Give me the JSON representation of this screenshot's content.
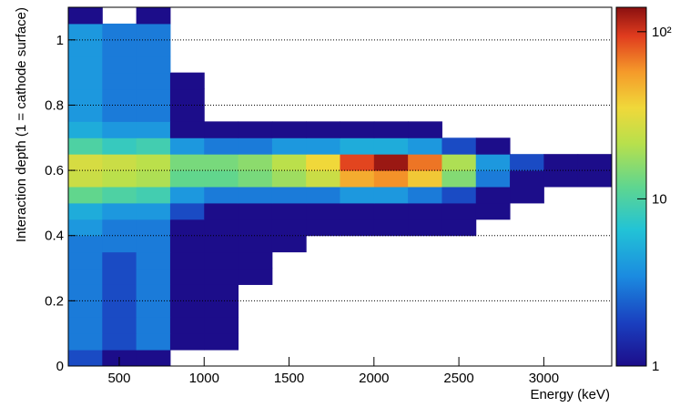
{
  "chart_data": {
    "type": "heatmap",
    "x_label": "Energy (keV)",
    "y_label": "Interaction depth (1 = cathode surface)",
    "x_bins": [
      200,
      400,
      600,
      800,
      1000,
      1200,
      1400,
      1600,
      1800,
      2000,
      2200,
      2400,
      2600,
      2800,
      3000,
      3200,
      3400
    ],
    "y_bins": [
      0,
      0.05,
      0.1,
      0.15,
      0.2,
      0.25,
      0.3,
      0.35,
      0.4,
      0.45,
      0.5,
      0.55,
      0.6,
      0.65,
      0.7,
      0.75,
      0.8,
      0.85,
      0.9,
      0.95,
      1,
      1.05,
      1.1
    ],
    "z": [
      [
        2,
        1,
        1,
        0,
        0,
        0,
        0,
        0,
        0,
        0,
        0,
        0,
        0,
        0,
        0,
        0
      ],
      [
        3,
        2,
        3,
        1,
        1,
        0,
        0,
        0,
        0,
        0,
        0,
        0,
        0,
        0,
        0,
        0
      ],
      [
        3,
        2,
        3,
        1,
        1,
        0,
        0,
        0,
        0,
        0,
        0,
        0,
        0,
        0,
        0,
        0
      ],
      [
        3,
        2,
        3,
        1,
        1,
        0,
        0,
        0,
        0,
        0,
        0,
        0,
        0,
        0,
        0,
        0
      ],
      [
        3,
        2,
        3,
        1,
        1,
        0,
        0,
        0,
        0,
        0,
        0,
        0,
        0,
        0,
        0,
        0
      ],
      [
        3,
        2,
        3,
        1,
        1,
        1,
        0,
        0,
        0,
        0,
        0,
        0,
        0,
        0,
        0,
        0
      ],
      [
        3,
        2,
        3,
        1,
        1,
        1,
        0,
        0,
        0,
        0,
        0,
        0,
        0,
        0,
        0,
        0
      ],
      [
        3,
        3,
        3,
        1,
        1,
        1,
        1,
        0,
        0,
        0,
        0,
        0,
        0,
        0,
        0,
        0
      ],
      [
        4,
        3,
        3,
        1,
        1,
        1,
        1,
        1,
        1,
        1,
        1,
        1,
        0,
        0,
        0,
        0
      ],
      [
        5,
        4,
        4,
        2,
        1,
        1,
        1,
        1,
        1,
        1,
        1,
        1,
        1,
        0,
        0,
        0
      ],
      [
        12,
        10,
        9,
        4,
        3,
        3,
        3,
        3,
        4,
        4,
        3,
        2,
        1,
        1,
        0,
        0
      ],
      [
        25,
        22,
        20,
        12,
        12,
        14,
        18,
        25,
        50,
        60,
        40,
        15,
        3,
        1,
        1,
        1
      ],
      [
        28,
        25,
        22,
        14,
        14,
        16,
        22,
        35,
        90,
        130,
        70,
        20,
        4,
        2,
        1,
        1
      ],
      [
        10,
        8,
        9,
        4,
        3,
        3,
        4,
        4,
        5,
        5,
        4,
        2,
        1,
        0,
        0,
        0
      ],
      [
        5,
        4,
        4,
        1,
        1,
        1,
        1,
        1,
        1,
        1,
        1,
        0,
        0,
        0,
        0,
        0
      ],
      [
        4,
        3,
        3,
        1,
        0,
        0,
        0,
        0,
        0,
        0,
        0,
        0,
        0,
        0,
        0,
        0
      ],
      [
        4,
        3,
        3,
        1,
        0,
        0,
        0,
        0,
        0,
        0,
        0,
        0,
        0,
        0,
        0,
        0
      ],
      [
        4,
        3,
        3,
        1,
        0,
        0,
        0,
        0,
        0,
        0,
        0,
        0,
        0,
        0,
        0,
        0
      ],
      [
        4,
        3,
        3,
        0,
        0,
        0,
        0,
        0,
        0,
        0,
        0,
        0,
        0,
        0,
        0,
        0
      ],
      [
        4,
        3,
        3,
        0,
        0,
        0,
        0,
        0,
        0,
        0,
        0,
        0,
        0,
        0,
        0,
        0
      ],
      [
        4,
        3,
        3,
        0,
        0,
        0,
        0,
        0,
        0,
        0,
        0,
        0,
        0,
        0,
        0,
        0
      ],
      [
        1,
        0,
        1,
        0,
        0,
        0,
        0,
        0,
        0,
        0,
        0,
        0,
        0,
        0,
        0,
        0
      ]
    ],
    "xlim": [
      200,
      3400
    ],
    "xticks": [
      500,
      1000,
      1500,
      2000,
      2500,
      3000
    ],
    "ylim": [
      0,
      1.1
    ],
    "yticks": [
      0,
      0.2,
      0.4,
      0.6,
      0.8,
      1
    ],
    "zlim": [
      1,
      140
    ],
    "zticks": [
      1,
      10,
      {
        "value": 100,
        "label": "10²"
      }
    ],
    "zscale": "log",
    "grid": "y"
  }
}
